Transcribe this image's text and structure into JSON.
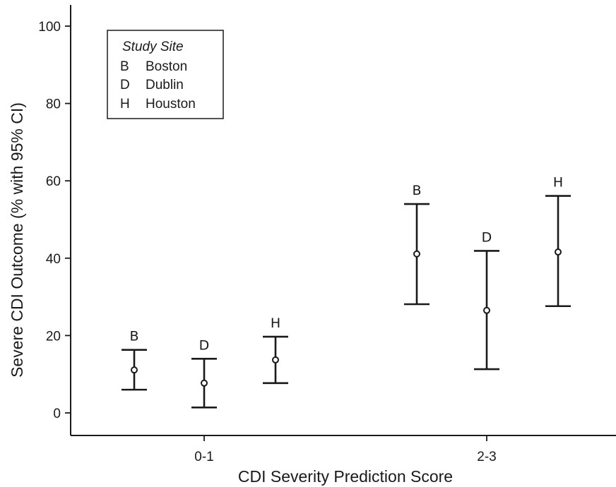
{
  "chart_data": {
    "type": "scatter",
    "xlabel": "CDI Severity Prediction Score",
    "ylabel": "Severe CDI Outcome (% with 95% CI)",
    "ylim": [
      -5,
      105
    ],
    "y_ticks": [
      0,
      20,
      40,
      60,
      80,
      100
    ],
    "categories": [
      "0-1",
      "2-3"
    ],
    "grid": false,
    "legend": {
      "title": "Study Site",
      "placement": "top-left",
      "entries": [
        {
          "code": "B",
          "label": "Boston"
        },
        {
          "code": "D",
          "label": "Dublin"
        },
        {
          "code": "H",
          "label": "Houston"
        }
      ]
    },
    "series": [
      {
        "name": "Boston",
        "code": "B",
        "points": [
          {
            "category": "0-1",
            "value": 11.1,
            "lower": 6.0,
            "upper": 16.3
          },
          {
            "category": "2-3",
            "value": 41.1,
            "lower": 28.1,
            "upper": 54.0
          }
        ]
      },
      {
        "name": "Dublin",
        "code": "D",
        "points": [
          {
            "category": "0-1",
            "value": 7.7,
            "lower": 1.4,
            "upper": 14.0
          },
          {
            "category": "2-3",
            "value": 26.5,
            "lower": 11.3,
            "upper": 41.9
          }
        ]
      },
      {
        "name": "Houston",
        "code": "H",
        "points": [
          {
            "category": "0-1",
            "value": 13.7,
            "lower": 7.7,
            "upper": 19.7
          },
          {
            "category": "2-3",
            "value": 41.6,
            "lower": 27.6,
            "upper": 56.1
          }
        ]
      }
    ]
  }
}
